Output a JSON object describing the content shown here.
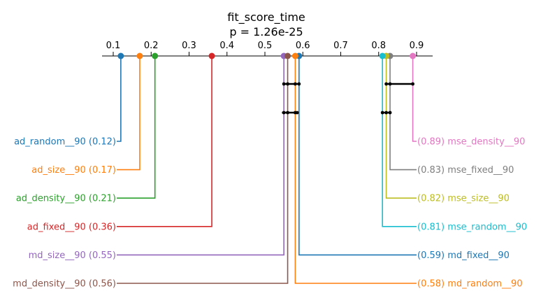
{
  "chart_data": {
    "type": "critical-difference",
    "title": "fit_score_time",
    "subtitle": "p = 1.26e-25",
    "xlim": [
      0.05,
      0.95
    ],
    "ticks": [
      0.1,
      0.2,
      0.3,
      0.4,
      0.5,
      0.6,
      0.7,
      0.8,
      0.9
    ],
    "tick_labels": [
      "0.1",
      "0.2",
      "0.3",
      "0.4",
      "0.5",
      "0.6",
      "0.7",
      "0.8",
      "0.9"
    ],
    "left_methods": [
      {
        "name": "ad_random__90",
        "value": 0.12,
        "label": "ad_random__90 (0.12)",
        "color": "#1f77b4"
      },
      {
        "name": "ad_size__90",
        "value": 0.17,
        "label": "ad_size__90 (0.17)",
        "color": "#ff7f0e"
      },
      {
        "name": "ad_density__90",
        "value": 0.21,
        "label": "ad_density__90 (0.21)",
        "color": "#2ca02c"
      },
      {
        "name": "ad_fixed__90",
        "value": 0.36,
        "label": "ad_fixed__90 (0.36)",
        "color": "#d62728"
      },
      {
        "name": "md_size__90",
        "value": 0.55,
        "label": "md_size__90 (0.55)",
        "color": "#9467bd"
      },
      {
        "name": "md_density__90",
        "value": 0.56,
        "label": "md_density__90 (0.56)",
        "color": "#8c564b"
      }
    ],
    "right_methods": [
      {
        "name": "mse_density__90",
        "value": 0.89,
        "label": "(0.89) mse_density__90",
        "color": "#e377c2"
      },
      {
        "name": "mse_fixed__90",
        "value": 0.83,
        "label": "(0.83) mse_fixed__90",
        "color": "#7f7f7f"
      },
      {
        "name": "mse_size__90",
        "value": 0.82,
        "label": "(0.82) mse_size__90",
        "color": "#bcbd22"
      },
      {
        "name": "mse_random__90",
        "value": 0.81,
        "label": "(0.81) mse_random__90",
        "color": "#17becf"
      },
      {
        "name": "md_fixed__90",
        "value": 0.59,
        "label": "(0.59) md_fixed__90",
        "color": "#1f77b4"
      },
      {
        "name": "md_random__90",
        "value": 0.58,
        "label": "(0.58) md_random__90",
        "color": "#ff7f0e"
      }
    ],
    "cliques": [
      {
        "from": 0.55,
        "to": 0.59,
        "members": [
          "md_size__90",
          "md_density__90",
          "md_random__90",
          "md_fixed__90"
        ]
      },
      {
        "from": 0.82,
        "to": 0.89,
        "members": [
          "mse_size__90",
          "mse_fixed__90",
          "mse_density__90"
        ]
      },
      {
        "from": 0.545,
        "to": 0.585,
        "members": [
          "md_size__90",
          "md_density__90",
          "md_random__90",
          "md_fixed__90"
        ]
      },
      {
        "from": 0.81,
        "to": 0.83,
        "members": [
          "mse_random__90",
          "mse_size__90",
          "mse_fixed__90"
        ]
      }
    ],
    "grid": false,
    "legend": "none"
  }
}
